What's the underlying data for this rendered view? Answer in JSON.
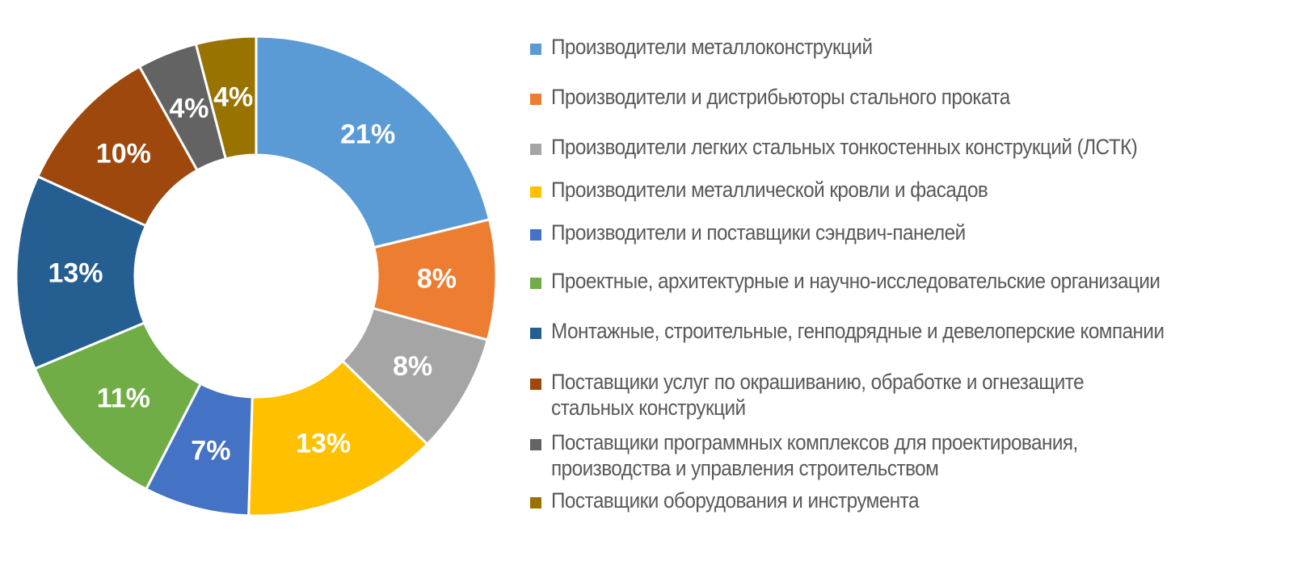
{
  "chart_data": {
    "type": "pie",
    "variant": "donut",
    "title": "",
    "categories": [
      "Производители металлоконструкций",
      "Производители и дистрибьюторы стального проката",
      "Производители легких стальных тонкостенных конструкций (ЛСТК)",
      "Производители металлической кровли и фасадов",
      "Производители и поставщики сэндвич-панелей",
      "Проектные, архитектурные и научно-исследовательские организации",
      "Монтажные, строительные, генподрядные и девелоперские компании",
      "Поставщики услуг по окрашиванию, обработке и огнезащите\nстальных конструкций",
      "Поставщики программных комплексов для проектирования,\nпроизводства и управления строительством",
      "Поставщики оборудования и инструмента"
    ],
    "values": [
      21,
      8,
      8,
      13,
      7,
      11,
      13,
      10,
      4,
      4
    ],
    "labels": [
      "21%",
      "8%",
      "8%",
      "13%",
      "7%",
      "11%",
      "13%",
      "10%",
      "4%",
      "4%"
    ],
    "colors": [
      "#5B9BD5",
      "#ED7D31",
      "#A5A5A5",
      "#FFC000",
      "#4472C4",
      "#70AD47",
      "#255E91",
      "#9E480E",
      "#636363",
      "#997300"
    ],
    "legend_position": "right"
  }
}
